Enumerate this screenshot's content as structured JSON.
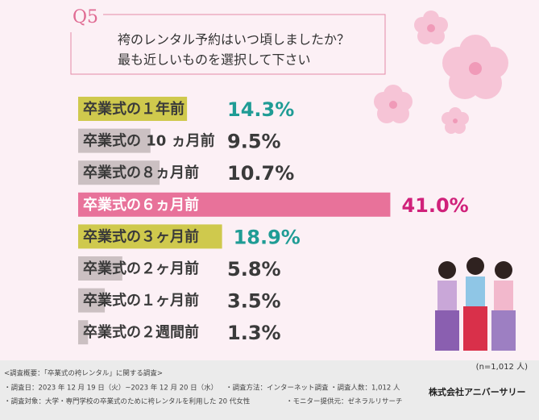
{
  "chart_data": {
    "type": "bar",
    "orientation": "horizontal",
    "title": "Q5",
    "subtitle": [
      "袴のレンタル予約はいつ頃しましたか？",
      "最も近しいものを選択して下さい"
    ],
    "categories": [
      "卒業式の１年前",
      "卒業式の 10 ヵ月前",
      "卒業式の８ヵ月前",
      "卒業式の６ヵ月前",
      "卒業式の３ヶ月前",
      "卒業式の２ヶ月前",
      "卒業式の１ヶ月前",
      "卒業式の２週間前"
    ],
    "values": [
      14.3,
      9.5,
      10.7,
      41.0,
      18.9,
      5.8,
      3.5,
      1.3
    ],
    "value_labels": [
      "14.3%",
      "9.5%",
      "10.7%",
      "41.0%",
      "18.9%",
      "5.8%",
      "3.5%",
      "1.3%"
    ],
    "colors": [
      "#cfc94d",
      "#cbc0c2",
      "#cbc0c2",
      "#e8729a",
      "#cfc94d",
      "#cbc0c2",
      "#cbc0c2",
      "#cbc0c2"
    ],
    "label_colors": [
      "#1f9c95",
      "#3a3a3a",
      "#3a3a3a",
      "#d0217a",
      "#1f9c95",
      "#3a3a3a",
      "#3a3a3a",
      "#3a3a3a"
    ],
    "sample_size": "(n=1,012 人)",
    "source": "株式会社アニバーサリー",
    "notes": [
      "<調査概要：「卒業式の袴レンタル」に関する調査>",
      "・調査日：2023 年 12 月 19 日（火）~2023 年 12 月 20 日（水）",
      "・調査方法：インターネット調査",
      "・調査人数：1,012 人",
      "・調査対象：大学・専門学校の卒業式のために袴レンタルを利用した 20 代女性",
      "・モニター提供元：ゼネラルリサーチ"
    ]
  }
}
